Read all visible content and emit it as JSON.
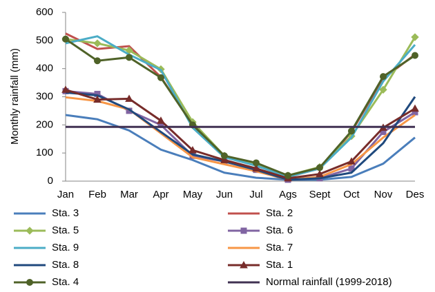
{
  "chart_data": {
    "type": "line",
    "y_label": "Monthly rainfall (mm)",
    "categories": [
      "Jan",
      "Feb",
      "Mar",
      "Apr",
      "May",
      "Jun",
      "Jul",
      "Ags",
      "Sept",
      "Oct",
      "Nov",
      "Des"
    ],
    "ylim": [
      0,
      600
    ],
    "yticks": [
      0,
      100,
      200,
      300,
      400,
      500,
      600
    ],
    "series": [
      {
        "name": "Sta. 3",
        "color": "#4a7ebb",
        "marker": "none",
        "values": [
          235,
          220,
          180,
          112,
          75,
          30,
          12,
          5,
          5,
          15,
          62,
          155
        ]
      },
      {
        "name": "Sta. 2",
        "color": "#c0504d",
        "marker": "none",
        "values": [
          525,
          470,
          480,
          370,
          200,
          85,
          60,
          15,
          45,
          175,
          365,
          450
        ]
      },
      {
        "name": "Sta. 5",
        "color": "#9bbb59",
        "marker": "diamond",
        "values": [
          505,
          490,
          465,
          398,
          210,
          90,
          60,
          20,
          50,
          160,
          325,
          512
        ]
      },
      {
        "name": "Sta. 6",
        "color": "#8064a2",
        "marker": "square",
        "values": [
          320,
          310,
          250,
          200,
          90,
          70,
          40,
          5,
          10,
          45,
          175,
          245
        ]
      },
      {
        "name": "Sta. 9",
        "color": "#4bacc6",
        "marker": "none",
        "values": [
          490,
          515,
          450,
          395,
          190,
          85,
          55,
          15,
          45,
          155,
          355,
          485
        ]
      },
      {
        "name": "Sta. 7",
        "color": "#f79646",
        "marker": "none",
        "values": [
          298,
          285,
          255,
          170,
          85,
          60,
          35,
          5,
          15,
          60,
          155,
          235
        ]
      },
      {
        "name": "Sta. 8",
        "color": "#1f497d",
        "marker": "none",
        "values": [
          315,
          305,
          255,
          175,
          95,
          70,
          40,
          5,
          10,
          30,
          135,
          300
        ]
      },
      {
        "name": "Sta. 1",
        "color": "#772c2a",
        "marker": "triangle",
        "values": [
          325,
          290,
          293,
          215,
          110,
          75,
          45,
          10,
          25,
          70,
          190,
          258
        ]
      },
      {
        "name": "Sta. 4",
        "color": "#4f6228",
        "marker": "circle",
        "values": [
          505,
          428,
          440,
          368,
          200,
          90,
          65,
          20,
          48,
          178,
          372,
          447
        ]
      },
      {
        "name": "Normal rainfall (1999-2018)",
        "color": "#403152",
        "marker": "none",
        "values": [
          193,
          193,
          193,
          193,
          193,
          193,
          193,
          193,
          193,
          193,
          193,
          193
        ]
      }
    ]
  }
}
